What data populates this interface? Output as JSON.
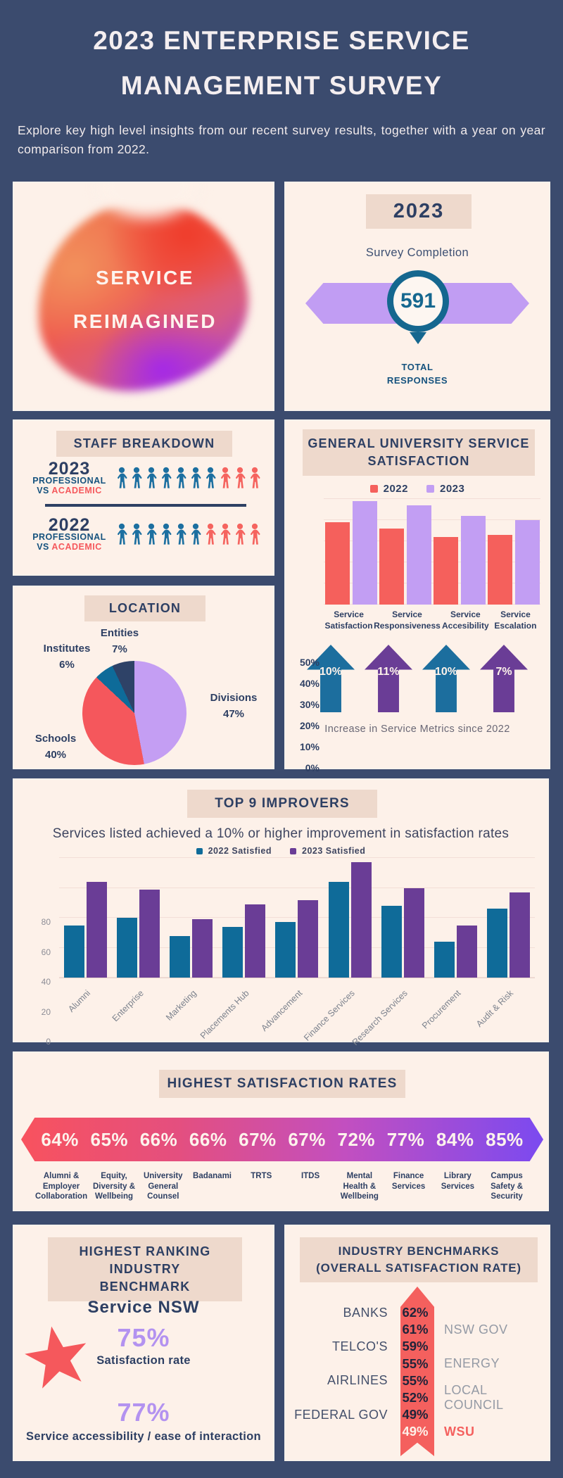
{
  "colors": {
    "bg": "#3b4b6e",
    "card": "#fdf1e9",
    "chip": "#eed9cc",
    "navy": "#2d3f63",
    "salmon": "#f5585c",
    "teal": "#136b99",
    "light_purple": "#c19df3",
    "dark_purple": "#6a3d96"
  },
  "header": {
    "title_line1": "2023 ENTERPRISE SERVICE",
    "title_line2": "MANAGEMENT SURVEY",
    "subtitle": "Explore key high level insights from our recent survey results, together with a year on year comparison from 2022."
  },
  "hero": {
    "line1": "SERVICE",
    "line2": "REIMAGINED"
  },
  "completion": {
    "year": "2023",
    "label": "Survey Completion",
    "count": "591",
    "caption_line1": "TOTAL",
    "caption_line2": "RESPONSES"
  },
  "staff": {
    "title": "STAFF BREAKDOWN",
    "rows": [
      {
        "year": "2023",
        "sub1": "PROFESSIONAL",
        "sub2_prefix": "VS ",
        "sub2_highlight": "ACADEMIC",
        "professional": 7,
        "academic": 3
      },
      {
        "year": "2022",
        "sub1": "PROFESSIONAL",
        "sub2_prefix": "VS ",
        "sub2_highlight": "ACADEMIC",
        "professional": 6,
        "academic": 4
      }
    ]
  },
  "benchmark": {
    "title_line1": "HIGHEST RANKING INDUSTRY",
    "title_line2": "BENCHMARK",
    "org": "Service NSW",
    "stat1": "75%",
    "stat1_label": "Satisfaction rate",
    "stat2": "77%",
    "stat2_label": "Service accessibility / ease of interaction"
  },
  "chart_data": [
    {
      "type": "bar",
      "title_line1": "GENERAL UNIVERSITY SERVICE",
      "title_line2": "SATISFACTION",
      "categories": [
        "Service Satisfaction",
        "Service Responsiveness",
        "Service Accesibility",
        "Service Escalation"
      ],
      "series": [
        {
          "name": "2022",
          "color": "#f5605c",
          "values": [
            39,
            36,
            32,
            33
          ]
        },
        {
          "name": "2023",
          "color": "#c29ef3",
          "values": [
            49,
            47,
            42,
            40
          ]
        }
      ],
      "ylim": [
        0,
        50
      ],
      "yticks": [
        "0%",
        "10%",
        "20%",
        "30%",
        "40%",
        "50%"
      ],
      "grid": true,
      "legend_position": "top",
      "increases": {
        "values": [
          "10%",
          "11%",
          "10%",
          "7%"
        ],
        "colors": [
          "#1c6e9e",
          "#6a3d96",
          "#1c6e9e",
          "#6a3d96"
        ],
        "caption": "Increase in Service Metrics since 2022"
      }
    },
    {
      "type": "pie",
      "title": "LOCATION",
      "slices": [
        {
          "label": "Divisions",
          "value": 47,
          "pct_display": "47%",
          "color": "#c49ef3"
        },
        {
          "label": "Schools",
          "value": 40,
          "pct_display": "40%",
          "color": "#f5575c"
        },
        {
          "label": "Institutes",
          "value": 6,
          "pct_display": "6%",
          "color": "#0e6b99"
        },
        {
          "label": "Entities",
          "value": 7,
          "pct_display": "7%",
          "color": "#2e4267"
        }
      ]
    },
    {
      "type": "bar",
      "title": "TOP 9 IMPROVERS",
      "subtitle": "Services listed achieved a 10% or higher improvement in satisfaction rates",
      "categories": [
        "Alumni",
        "Enterprise",
        "Marketing",
        "Placements Hub",
        "Advancement",
        "Finance Services",
        "Research Services",
        "Procurement",
        "Audit & Risk"
      ],
      "series": [
        {
          "name": "2022 Satisfied",
          "color": "#0f6b99",
          "values": [
            35,
            40,
            28,
            34,
            37,
            64,
            48,
            24,
            46
          ]
        },
        {
          "name": "2023 Satisfied",
          "color": "#6a3d96",
          "values": [
            64,
            59,
            39,
            49,
            52,
            77,
            60,
            35,
            57
          ]
        }
      ],
      "ylim": [
        0,
        80
      ],
      "yticks": [
        "0",
        "20",
        "40",
        "60",
        "80"
      ],
      "grid": true,
      "legend_position": "top"
    },
    {
      "type": "table",
      "title": "HIGHEST SATISFACTION RATES",
      "items": [
        {
          "pct": "64%",
          "label": "Alumni & Employer Collaboration"
        },
        {
          "pct": "65%",
          "label": "Equity, Diversity & Wellbeing"
        },
        {
          "pct": "66%",
          "label": "University General Counsel"
        },
        {
          "pct": "66%",
          "label": "Badanami"
        },
        {
          "pct": "67%",
          "label": "TRTS"
        },
        {
          "pct": "67%",
          "label": "ITDS"
        },
        {
          "pct": "72%",
          "label": "Mental Health & Wellbeing"
        },
        {
          "pct": "77%",
          "label": "Finance Services"
        },
        {
          "pct": "84%",
          "label": "Library Services"
        },
        {
          "pct": "85%",
          "label": "Campus Safety & Security"
        }
      ]
    },
    {
      "type": "table",
      "title_line1": "INDUSTRY BENCHMARKS",
      "title_line2": "(OVERALL SATISFACTION RATE)",
      "rows": [
        {
          "side": "left",
          "label": "BANKS",
          "pct": "62%"
        },
        {
          "side": "right",
          "label": "NSW GOV",
          "pct": "61%"
        },
        {
          "side": "left",
          "label": "TELCO'S",
          "pct": "59%"
        },
        {
          "side": "right",
          "label": "ENERGY",
          "pct": "55%"
        },
        {
          "side": "left",
          "label": "AIRLINES",
          "pct": "55%"
        },
        {
          "side": "right",
          "label": "LOCAL COUNCIL",
          "pct": "52%"
        },
        {
          "side": "left",
          "label": "FEDERAL GOV",
          "pct": "49%"
        },
        {
          "side": "right",
          "label": "WSU",
          "pct": "49%",
          "highlight": true,
          "pct_light": true
        }
      ]
    }
  ]
}
